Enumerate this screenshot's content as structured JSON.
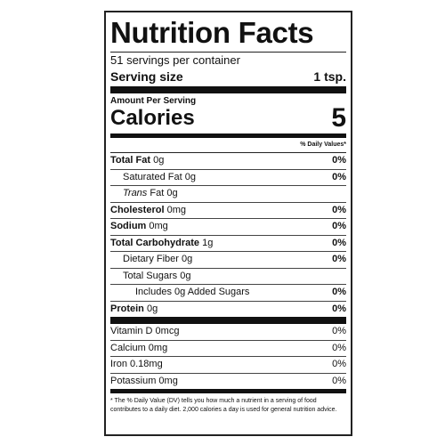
{
  "title": "Nutrition Facts",
  "servings": "51 servings per container",
  "serving_size": {
    "label": "Serving size",
    "value": "1 tsp."
  },
  "amount_per_serving": "Amount Per Serving",
  "calories": {
    "label": "Calories",
    "value": "5"
  },
  "dv_header": "% Daily Values*",
  "nutrients": [
    {
      "name": "Total Fat",
      "amount": "0g",
      "dv": "0%"
    },
    {
      "name": "Saturated Fat 0g",
      "dv": "0%"
    },
    {
      "name_italic": "Trans",
      "name": "Fat 0g"
    },
    {
      "name": "Cholesterol",
      "amount": "0mg",
      "dv": "0%"
    },
    {
      "name": "Sodium",
      "amount": "0mg",
      "dv": "0%"
    },
    {
      "name": "Total Carbohydrate",
      "amount": "1g",
      "dv": "0%"
    },
    {
      "name": "Dietary Fiber 0g",
      "dv": "0%"
    },
    {
      "name": "Total Sugars 0g"
    },
    {
      "name": "Includes 0g Added Sugars",
      "dv": "0%"
    },
    {
      "name": "Protein",
      "amount": "0g",
      "dv": "0%"
    }
  ],
  "vitamins": [
    {
      "name": "Vitamin D 0mcg",
      "dv": "0%"
    },
    {
      "name": "Calcium 0mg",
      "dv": "0%"
    },
    {
      "name": "Iron 0.18mg",
      "dv": "0%"
    },
    {
      "name": "Potassium 0mg",
      "dv": "0%"
    }
  ],
  "footnote": "* The % Daily Value (DV) tells you how much a nutrient in a serving of food contributes to a daily diet. 2,000 calories a day is used for general nutrition advice."
}
